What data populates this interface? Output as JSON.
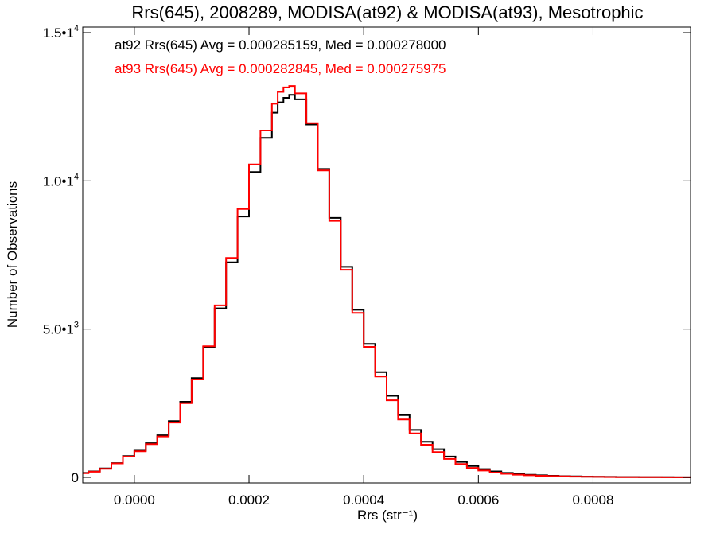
{
  "chart_data": {
    "type": "line",
    "title": "Rrs(645), 2008289, MODISA(at92) & MODISA(at93), Mesotrophic",
    "xlabel": "Rrs (str⁻¹)",
    "ylabel": "Number of Observations",
    "xlim": [
      -9e-05,
      0.00097
    ],
    "ylim": [
      0,
      15000
    ],
    "x_ticks": [
      0.0,
      0.0002,
      0.0004,
      0.0006,
      0.0008
    ],
    "x_tick_labels": [
      "0.0000",
      "0.0002",
      "0.0004",
      "0.0006",
      "0.0008"
    ],
    "y_ticks": [
      0,
      5000,
      10000,
      15000
    ],
    "y_tick_labels": [
      {
        "mantissa": "0",
        "exponent": ""
      },
      {
        "mantissa": "5.0•1",
        "exponent": "3"
      },
      {
        "mantissa": "1.0•1",
        "exponent": "4"
      },
      {
        "mantissa": "1.5•1",
        "exponent": "4"
      }
    ],
    "grid": false,
    "legend_position": "top-left",
    "annotations": [
      "at92 Rrs(645) Avg = 0.000285159, Med = 0.000278000",
      "at93 Rrs(645) Avg = 0.000282845, Med = 0.000275975"
    ],
    "series": [
      {
        "color": "#000000",
        "step": true,
        "x": [
          -9e-05,
          -8e-05,
          -6e-05,
          -4e-05,
          -2e-05,
          0.0,
          2e-05,
          4e-05,
          6e-05,
          8e-05,
          0.0001,
          0.00012,
          0.00014,
          0.00016,
          0.00018,
          0.0002,
          0.00022,
          0.00024,
          0.00025,
          0.00026,
          0.00027,
          0.00028,
          0.0003,
          0.00032,
          0.00034,
          0.00036,
          0.00038,
          0.0004,
          0.00042,
          0.00044,
          0.00046,
          0.00048,
          0.0005,
          0.00052,
          0.00054,
          0.00056,
          0.00058,
          0.0006,
          0.00062,
          0.00064,
          0.00066,
          0.00068,
          0.0007,
          0.00072,
          0.00074,
          0.00076,
          0.00078,
          0.0008,
          0.00082,
          0.00084,
          0.00086,
          0.00088,
          0.0009,
          0.00092,
          0.00094,
          0.00096
        ],
        "y": [
          150,
          200,
          300,
          480,
          720,
          900,
          1150,
          1420,
          1900,
          2550,
          3350,
          4400,
          5700,
          7250,
          8800,
          10300,
          11450,
          12300,
          12650,
          12800,
          12900,
          12750,
          11900,
          10400,
          8750,
          7100,
          5650,
          4500,
          3550,
          2750,
          2100,
          1600,
          1200,
          950,
          700,
          520,
          380,
          280,
          200,
          150,
          110,
          85,
          70,
          55,
          40,
          32,
          25,
          20,
          15,
          12,
          10,
          8,
          6,
          5,
          4,
          3
        ]
      },
      {
        "color": "#ff0000",
        "step": true,
        "x": [
          -9e-05,
          -8e-05,
          -6e-05,
          -4e-05,
          -2e-05,
          0.0,
          2e-05,
          4e-05,
          6e-05,
          8e-05,
          0.0001,
          0.00012,
          0.00014,
          0.00016,
          0.00018,
          0.0002,
          0.00022,
          0.00024,
          0.00025,
          0.00026,
          0.00027,
          0.00028,
          0.0003,
          0.00032,
          0.00034,
          0.00036,
          0.00038,
          0.0004,
          0.00042,
          0.00044,
          0.00046,
          0.00048,
          0.0005,
          0.00052,
          0.00054,
          0.00056,
          0.00058,
          0.0006,
          0.00062,
          0.00064,
          0.00066,
          0.00068,
          0.0007,
          0.00072,
          0.00074,
          0.00076,
          0.00078,
          0.0008,
          0.00082,
          0.00084,
          0.00086,
          0.00088,
          0.0009,
          0.00092,
          0.00094,
          0.00096
        ],
        "y": [
          140,
          190,
          290,
          470,
          700,
          880,
          1120,
          1380,
          1850,
          2500,
          3300,
          4420,
          5800,
          7400,
          9050,
          10550,
          11700,
          12600,
          13000,
          13150,
          13200,
          12950,
          11950,
          10350,
          8650,
          7000,
          5550,
          4400,
          3400,
          2600,
          1950,
          1480,
          1100,
          850,
          620,
          450,
          320,
          230,
          160,
          120,
          90,
          70,
          55,
          42,
          32,
          25,
          20,
          15,
          12,
          9,
          7,
          6,
          5,
          4,
          3,
          2
        ]
      }
    ]
  }
}
